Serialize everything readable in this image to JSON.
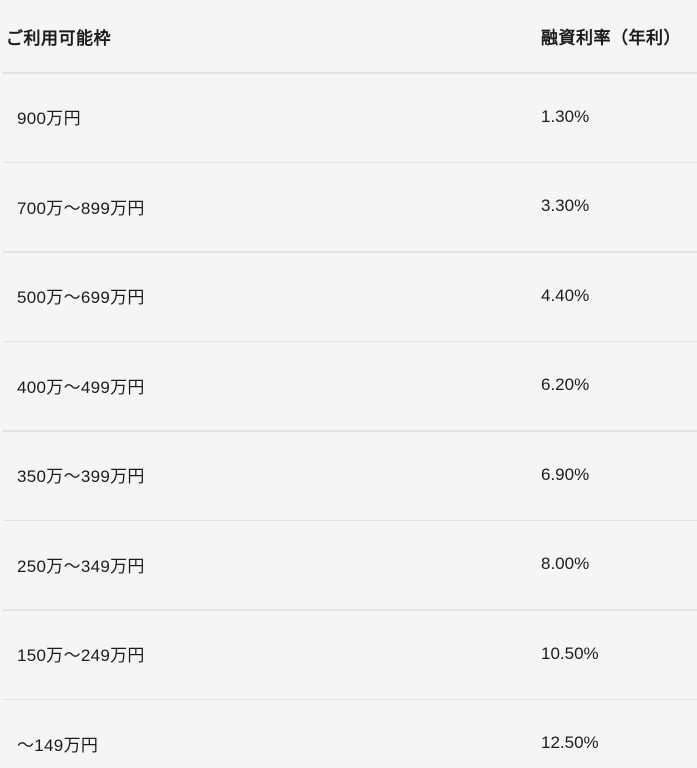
{
  "table": {
    "headers": {
      "left": "ご利用可能枠",
      "right": "融資利率（年利）"
    },
    "rows": [
      {
        "range": "900万円",
        "rate": "1.30%"
      },
      {
        "range": "700万〜899万円",
        "rate": "3.30%"
      },
      {
        "range": "500万〜699万円",
        "rate": "4.40%"
      },
      {
        "range": "400万〜499万円",
        "rate": "6.20%"
      },
      {
        "range": "350万〜399万円",
        "rate": "6.90%"
      },
      {
        "range": "250万〜349万円",
        "rate": "8.00%"
      },
      {
        "range": "150万〜249万円",
        "rate": "10.50%"
      },
      {
        "range": "〜149万円",
        "rate": "12.50%"
      }
    ]
  },
  "chart_data": {
    "type": "table",
    "title": "",
    "columns": [
      "ご利用可能枠",
      "融資利率（年利）"
    ],
    "rows_text": [
      [
        "900万円",
        "1.30%"
      ],
      [
        "700万〜899万円",
        "3.30%"
      ],
      [
        "500万〜699万円",
        "4.40%"
      ],
      [
        "400万〜499万円",
        "6.20%"
      ],
      [
        "350万〜399万円",
        "6.90%"
      ],
      [
        "250万〜349万円",
        "8.00%"
      ],
      [
        "150万〜249万円",
        "10.50%"
      ],
      [
        "〜149万円",
        "12.50%"
      ]
    ],
    "rates_percent": [
      1.3,
      3.3,
      4.4,
      6.2,
      6.9,
      8.0,
      10.5,
      12.5
    ]
  },
  "colors": {
    "background": "#f5f5f5",
    "divider": "#e2e2e2",
    "text": "#1c1c1c"
  }
}
